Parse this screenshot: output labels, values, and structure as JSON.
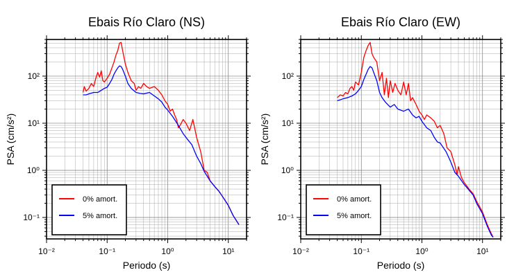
{
  "chart_data": [
    {
      "type": "line",
      "title": "Ebais Río Claro (NS)",
      "xlabel": "Periodo (s)",
      "ylabel": "PSA (cm/s²)",
      "xscale": "log",
      "yscale": "log",
      "xlim": [
        0.01,
        20
      ],
      "ylim": [
        0.035,
        600
      ],
      "x_ticks": [
        "10⁻²",
        "10⁻¹",
        "10⁰",
        "10¹"
      ],
      "y_ticks": [
        "10⁻¹",
        "10⁰",
        "10¹",
        "10²"
      ],
      "grid": true,
      "legend": "bottom-left",
      "series": [
        {
          "name": "0% amort.",
          "color": "#ff0000",
          "points": [
            [
              0.04,
              45
            ],
            [
              0.042,
              60
            ],
            [
              0.045,
              48
            ],
            [
              0.05,
              55
            ],
            [
              0.055,
              70
            ],
            [
              0.06,
              60
            ],
            [
              0.065,
              90
            ],
            [
              0.07,
              120
            ],
            [
              0.075,
              95
            ],
            [
              0.08,
              130
            ],
            [
              0.085,
              80
            ],
            [
              0.09,
              75
            ],
            [
              0.1,
              90
            ],
            [
              0.11,
              110
            ],
            [
              0.12,
              150
            ],
            [
              0.13,
              200
            ],
            [
              0.14,
              280
            ],
            [
              0.15,
              350
            ],
            [
              0.16,
              500
            ],
            [
              0.17,
              520
            ],
            [
              0.18,
              350
            ],
            [
              0.2,
              180
            ],
            [
              0.22,
              120
            ],
            [
              0.25,
              80
            ],
            [
              0.28,
              70
            ],
            [
              0.3,
              50
            ],
            [
              0.33,
              60
            ],
            [
              0.36,
              55
            ],
            [
              0.4,
              70
            ],
            [
              0.45,
              60
            ],
            [
              0.5,
              55
            ],
            [
              0.6,
              60
            ],
            [
              0.7,
              50
            ],
            [
              0.8,
              40
            ],
            [
              0.9,
              30
            ],
            [
              1.0,
              25
            ],
            [
              1.1,
              18
            ],
            [
              1.2,
              20
            ],
            [
              1.3,
              15
            ],
            [
              1.4,
              12
            ],
            [
              1.5,
              8
            ],
            [
              1.6,
              9
            ],
            [
              1.8,
              12
            ],
            [
              2.0,
              10
            ],
            [
              2.3,
              7
            ],
            [
              2.6,
              12
            ],
            [
              3.0,
              5
            ],
            [
              3.5,
              2.5
            ],
            [
              4.0,
              1
            ],
            [
              4.5,
              0.9
            ],
            [
              5.0,
              0.6
            ],
            [
              6.0,
              0.45
            ],
            [
              7.0,
              0.36
            ],
            [
              8.0,
              0.28
            ],
            [
              10.0,
              0.18
            ],
            [
              12.0,
              0.11
            ],
            [
              15.0,
              0.07
            ]
          ]
        },
        {
          "name": "5% amort.",
          "color": "#0000ff",
          "points": [
            [
              0.04,
              40
            ],
            [
              0.045,
              40
            ],
            [
              0.05,
              42
            ],
            [
              0.06,
              45
            ],
            [
              0.07,
              45
            ],
            [
              0.08,
              50
            ],
            [
              0.09,
              55
            ],
            [
              0.1,
              58
            ],
            [
              0.11,
              70
            ],
            [
              0.12,
              85
            ],
            [
              0.13,
              110
            ],
            [
              0.14,
              130
            ],
            [
              0.15,
              150
            ],
            [
              0.16,
              165
            ],
            [
              0.17,
              160
            ],
            [
              0.18,
              140
            ],
            [
              0.2,
              100
            ],
            [
              0.22,
              70
            ],
            [
              0.25,
              55
            ],
            [
              0.3,
              45
            ],
            [
              0.35,
              43
            ],
            [
              0.4,
              42
            ],
            [
              0.5,
              45
            ],
            [
              0.6,
              38
            ],
            [
              0.7,
              33
            ],
            [
              0.8,
              28
            ],
            [
              0.9,
              22
            ],
            [
              1.0,
              19
            ],
            [
              1.2,
              14
            ],
            [
              1.5,
              9
            ],
            [
              1.8,
              6
            ],
            [
              2.0,
              5
            ],
            [
              2.5,
              3.5
            ],
            [
              3.0,
              2
            ],
            [
              3.5,
              1.4
            ],
            [
              4.0,
              0.95
            ],
            [
              5.0,
              0.6
            ],
            [
              6.0,
              0.45
            ],
            [
              7.0,
              0.36
            ],
            [
              8.0,
              0.28
            ],
            [
              10.0,
              0.18
            ],
            [
              12.0,
              0.11
            ],
            [
              15.0,
              0.07
            ]
          ]
        }
      ]
    },
    {
      "type": "line",
      "title": "Ebais Río Claro (EW)",
      "xlabel": "Periodo (s)",
      "ylabel": "PSA (cm/s²)",
      "xscale": "log",
      "yscale": "log",
      "xlim": [
        0.01,
        20
      ],
      "ylim": [
        0.035,
        600
      ],
      "x_ticks": [
        "10⁻²",
        "10⁻¹",
        "10⁰",
        "10¹"
      ],
      "y_ticks": [
        "10⁻¹",
        "10⁰",
        "10¹",
        "10²"
      ],
      "grid": true,
      "legend": "bottom-left",
      "series": [
        {
          "name": "0% amort.",
          "color": "#ff0000",
          "points": [
            [
              0.04,
              35
            ],
            [
              0.045,
              40
            ],
            [
              0.05,
              38
            ],
            [
              0.055,
              45
            ],
            [
              0.06,
              42
            ],
            [
              0.065,
              55
            ],
            [
              0.07,
              60
            ],
            [
              0.075,
              50
            ],
            [
              0.08,
              75
            ],
            [
              0.09,
              65
            ],
            [
              0.1,
              120
            ],
            [
              0.11,
              250
            ],
            [
              0.12,
              350
            ],
            [
              0.13,
              450
            ],
            [
              0.14,
              520
            ],
            [
              0.15,
              300
            ],
            [
              0.16,
              250
            ],
            [
              0.18,
              200
            ],
            [
              0.2,
              80
            ],
            [
              0.22,
              120
            ],
            [
              0.24,
              40
            ],
            [
              0.26,
              90
            ],
            [
              0.28,
              35
            ],
            [
              0.3,
              80
            ],
            [
              0.33,
              45
            ],
            [
              0.36,
              70
            ],
            [
              0.4,
              50
            ],
            [
              0.45,
              40
            ],
            [
              0.5,
              75
            ],
            [
              0.55,
              40
            ],
            [
              0.6,
              70
            ],
            [
              0.65,
              30
            ],
            [
              0.7,
              35
            ],
            [
              0.8,
              25
            ],
            [
              0.9,
              18
            ],
            [
              1.0,
              15
            ],
            [
              1.1,
              12
            ],
            [
              1.2,
              15
            ],
            [
              1.4,
              13
            ],
            [
              1.6,
              11
            ],
            [
              1.8,
              8
            ],
            [
              2.0,
              9
            ],
            [
              2.3,
              6
            ],
            [
              2.6,
              3
            ],
            [
              3.0,
              2.5
            ],
            [
              3.5,
              1.3
            ],
            [
              3.8,
              0.8
            ],
            [
              4.0,
              1.2
            ],
            [
              4.5,
              0.7
            ],
            [
              5.0,
              0.55
            ],
            [
              6.0,
              0.4
            ],
            [
              7.0,
              0.32
            ],
            [
              8.0,
              0.22
            ],
            [
              10.0,
              0.13
            ],
            [
              12.0,
              0.07
            ],
            [
              14.0,
              0.045
            ],
            [
              15.0,
              0.038
            ]
          ]
        },
        {
          "name": "5% amort.",
          "color": "#0000ff",
          "points": [
            [
              0.04,
              30
            ],
            [
              0.05,
              33
            ],
            [
              0.06,
              35
            ],
            [
              0.07,
              38
            ],
            [
              0.08,
              42
            ],
            [
              0.09,
              50
            ],
            [
              0.1,
              60
            ],
            [
              0.11,
              85
            ],
            [
              0.12,
              110
            ],
            [
              0.13,
              140
            ],
            [
              0.14,
              160
            ],
            [
              0.15,
              150
            ],
            [
              0.16,
              120
            ],
            [
              0.18,
              80
            ],
            [
              0.2,
              45
            ],
            [
              0.22,
              35
            ],
            [
              0.25,
              28
            ],
            [
              0.3,
              22
            ],
            [
              0.35,
              25
            ],
            [
              0.4,
              20
            ],
            [
              0.5,
              18
            ],
            [
              0.6,
              20
            ],
            [
              0.7,
              15
            ],
            [
              0.8,
              13
            ],
            [
              0.9,
              14
            ],
            [
              1.0,
              11
            ],
            [
              1.2,
              8
            ],
            [
              1.4,
              7
            ],
            [
              1.6,
              5
            ],
            [
              1.8,
              4
            ],
            [
              2.0,
              3.8
            ],
            [
              2.5,
              2.5
            ],
            [
              3.0,
              1.5
            ],
            [
              3.5,
              0.9
            ],
            [
              4.0,
              0.75
            ],
            [
              5.0,
              0.5
            ],
            [
              6.0,
              0.38
            ],
            [
              7.0,
              0.3
            ],
            [
              8.0,
              0.2
            ],
            [
              10.0,
              0.12
            ],
            [
              12.0,
              0.065
            ],
            [
              14.0,
              0.042
            ],
            [
              15.0,
              0.038
            ]
          ]
        }
      ]
    }
  ]
}
